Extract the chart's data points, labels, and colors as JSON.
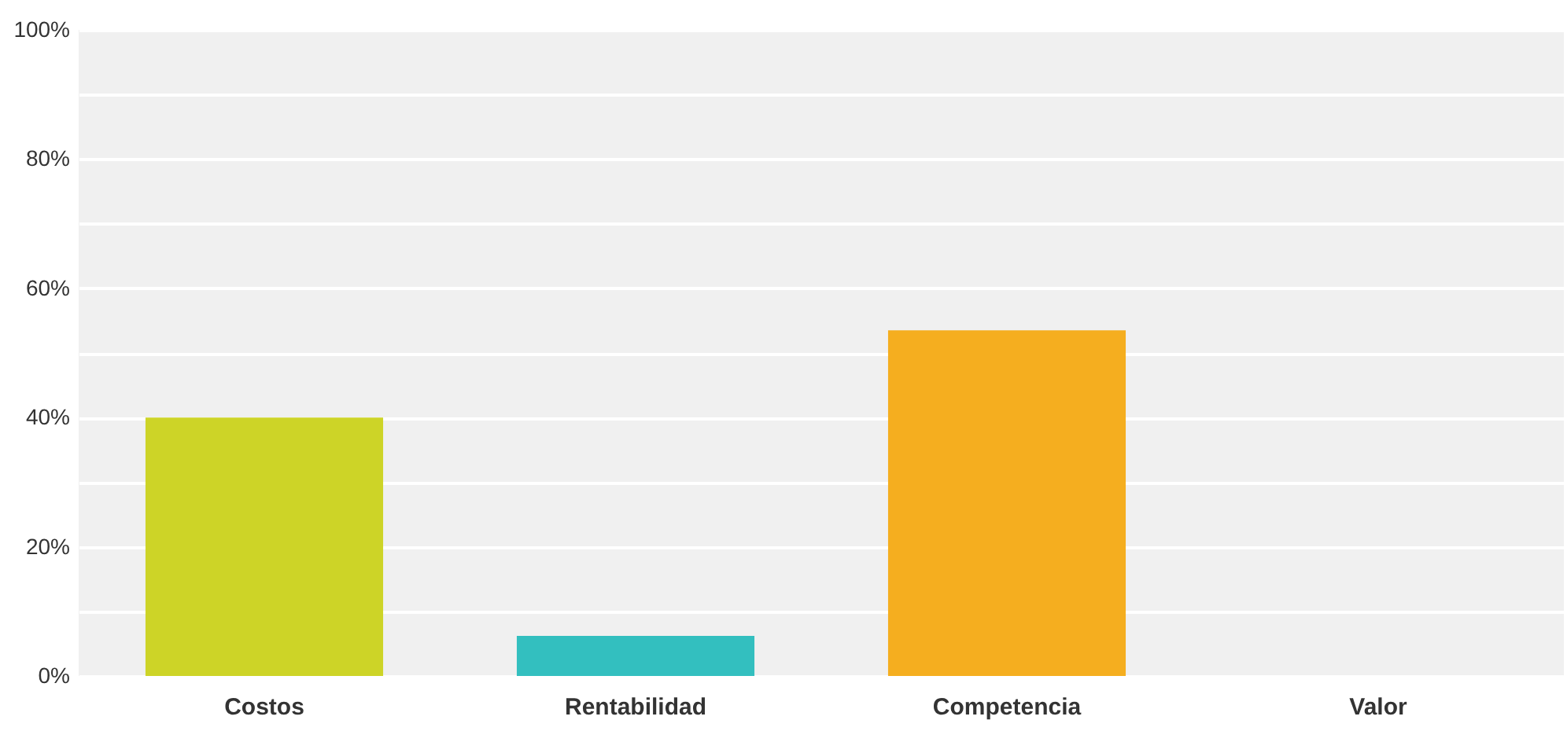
{
  "chart_data": {
    "type": "bar",
    "categories": [
      "Costos",
      "Rentabilidad",
      "Competencia",
      "Valor"
    ],
    "values": [
      40,
      6.2,
      53.5,
      0
    ],
    "colors": [
      "#cdd427",
      "#33bfbf",
      "#f5ae1f",
      "#999999"
    ],
    "ylim": [
      0,
      100
    ],
    "yticks": [
      {
        "value": 0,
        "label": "0%"
      },
      {
        "value": 10,
        "label": null
      },
      {
        "value": 20,
        "label": "20%"
      },
      {
        "value": 30,
        "label": null
      },
      {
        "value": 40,
        "label": "40%"
      },
      {
        "value": 50,
        "label": null
      },
      {
        "value": 60,
        "label": "60%"
      },
      {
        "value": 70,
        "label": null
      },
      {
        "value": 80,
        "label": "80%"
      },
      {
        "value": 90,
        "label": null
      },
      {
        "value": 100,
        "label": "100%"
      }
    ],
    "grid": "y"
  }
}
